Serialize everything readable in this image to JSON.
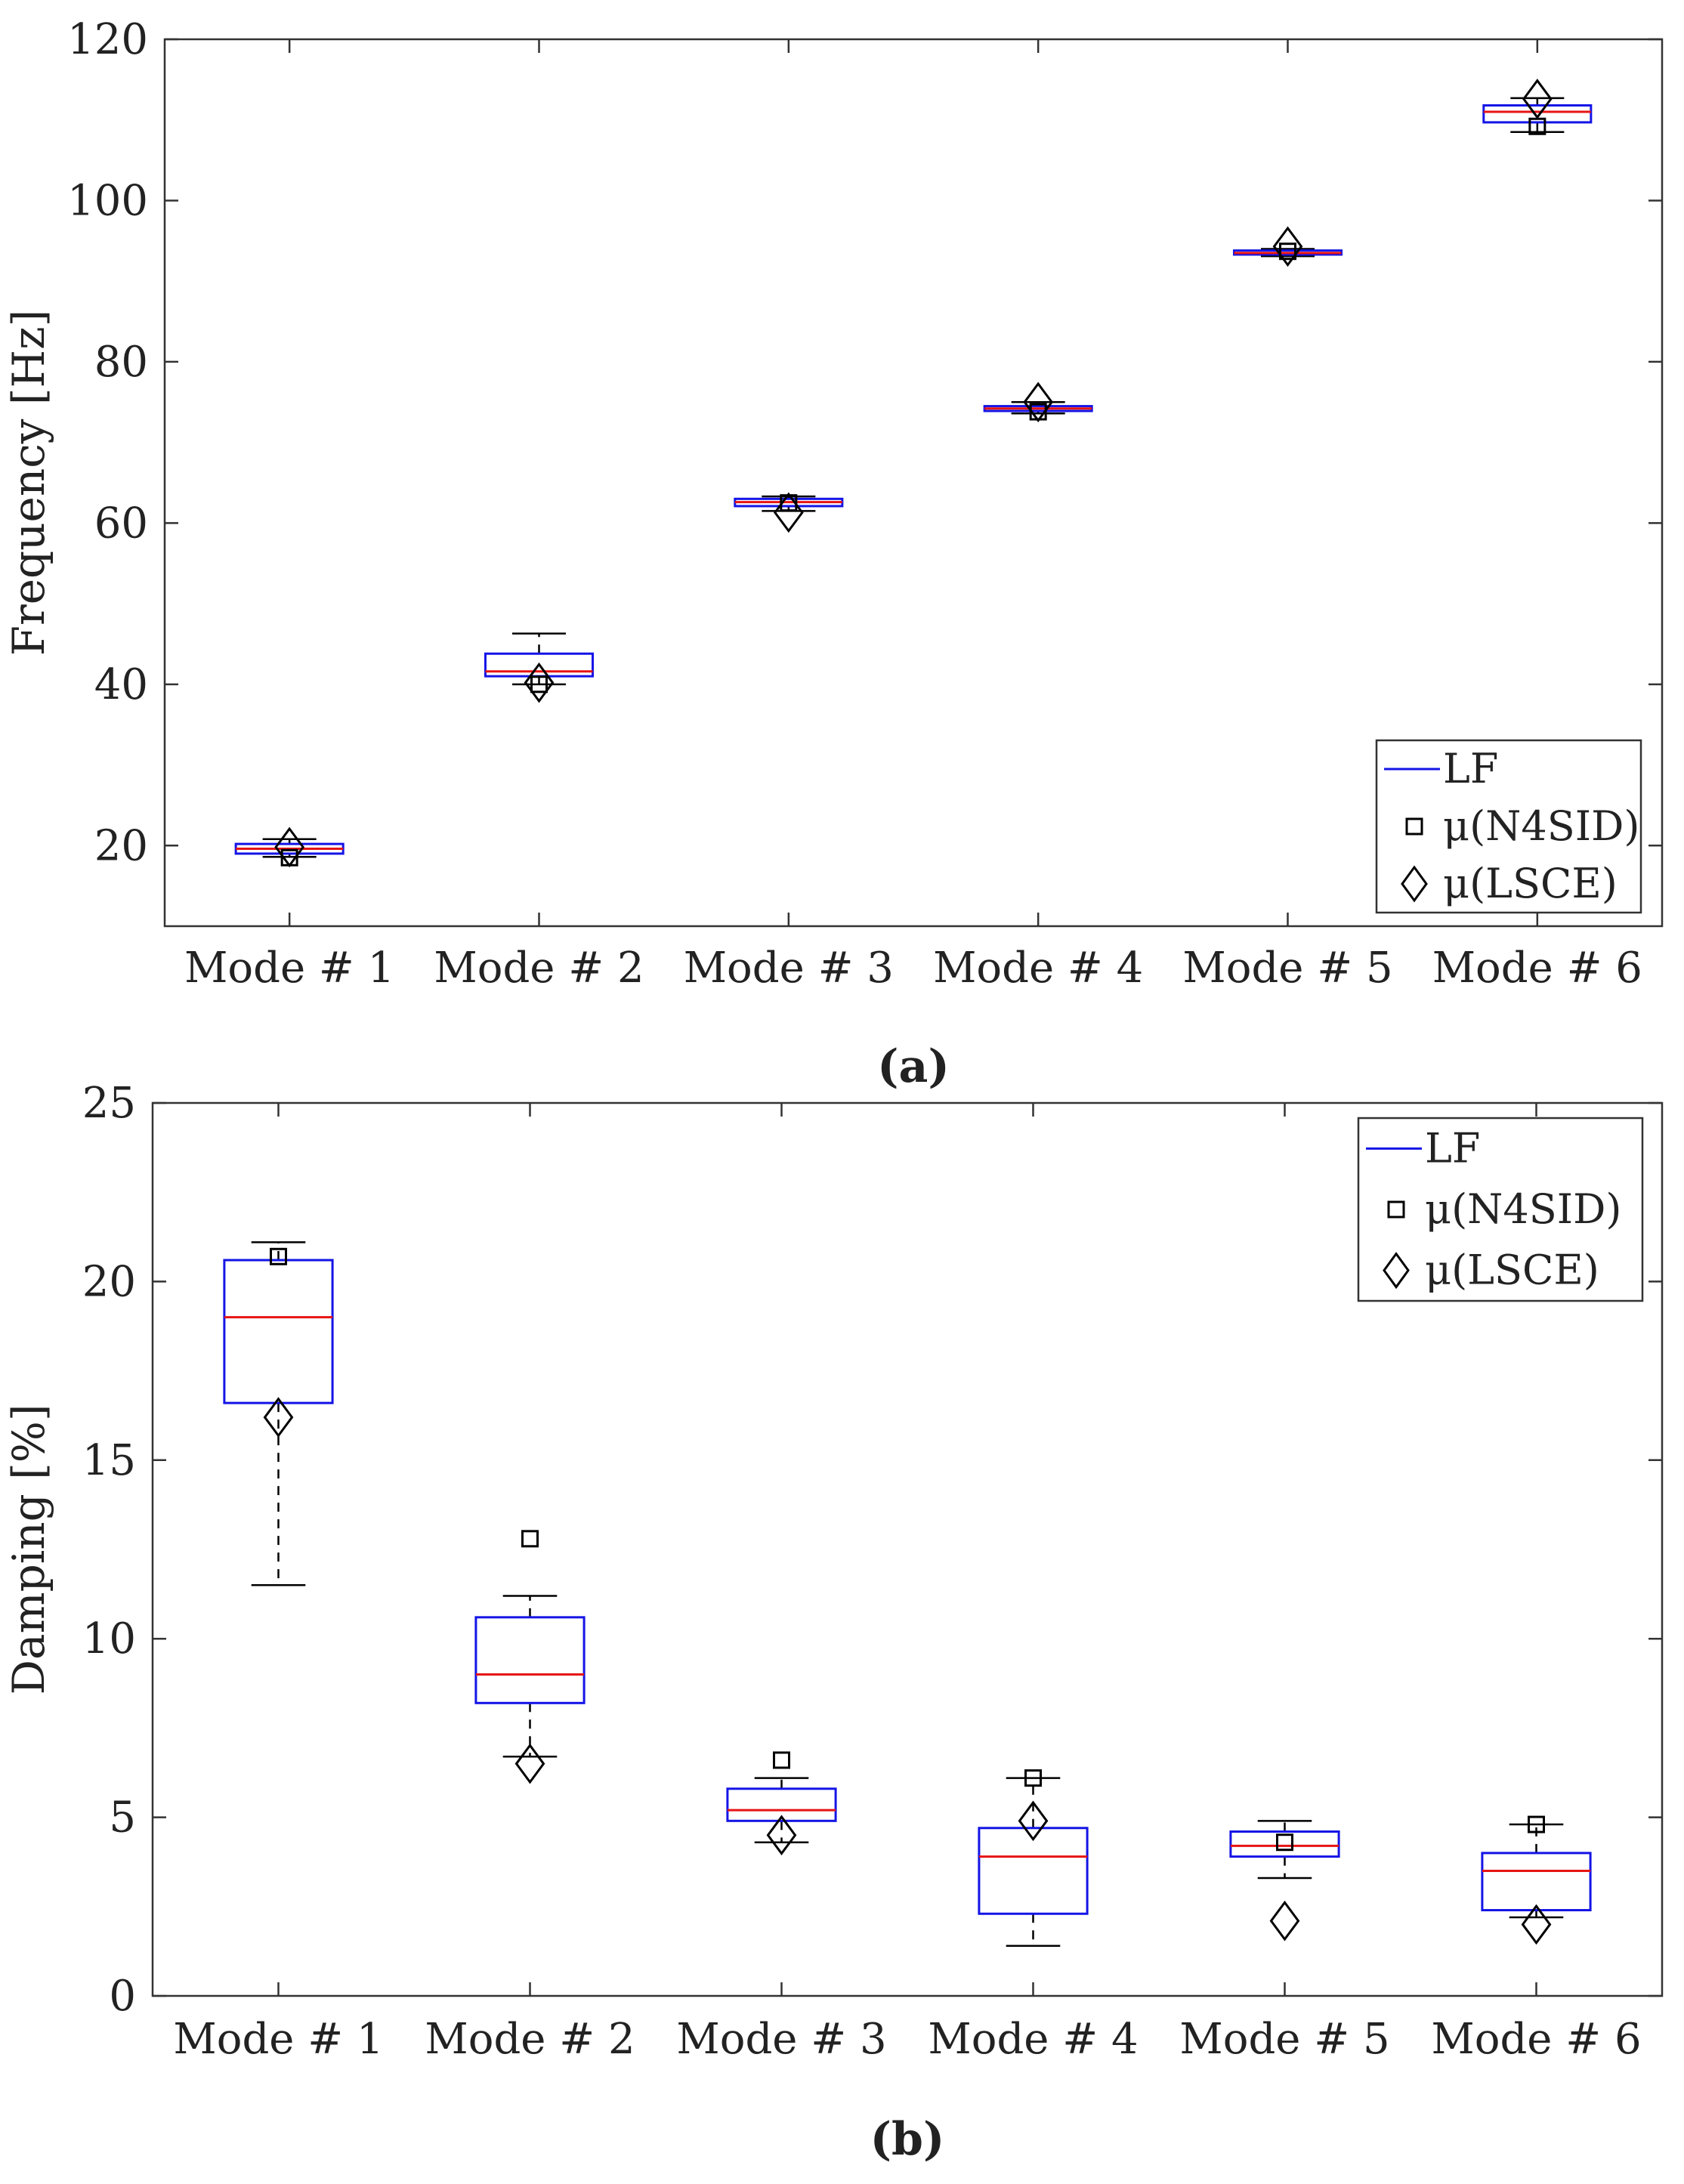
{
  "chart_data": [
    {
      "id": "a",
      "type": "box",
      "panel_label": "(a)",
      "ylabel": "Frequency [Hz]",
      "ylim": [
        10,
        120
      ],
      "yticks": [
        20,
        40,
        60,
        80,
        100,
        120
      ],
      "categories": [
        "Mode # 1",
        "Mode # 2",
        "Mode # 3",
        "Mode # 4",
        "Mode # 5",
        "Mode # 6"
      ],
      "boxes": [
        {
          "whisker_low": 18.6,
          "q1": 19.0,
          "median": 19.6,
          "q3": 20.2,
          "whisker_high": 20.8
        },
        {
          "whisker_low": 40.0,
          "q1": 41.0,
          "median": 41.6,
          "q3": 43.8,
          "whisker_high": 46.3
        },
        {
          "whisker_low": 61.5,
          "q1": 62.1,
          "median": 62.6,
          "q3": 63.0,
          "whisker_high": 63.3
        },
        {
          "whisker_low": 73.6,
          "q1": 73.9,
          "median": 74.2,
          "q3": 74.5,
          "whisker_high": 75.0
        },
        {
          "whisker_low": 93.1,
          "q1": 93.3,
          "median": 93.5,
          "q3": 93.8,
          "whisker_high": 94.0
        },
        {
          "whisker_low": 108.5,
          "q1": 109.7,
          "median": 111.0,
          "q3": 111.8,
          "whisker_high": 112.7
        }
      ],
      "n4sid_mean": [
        18.5,
        40.0,
        62.5,
        73.8,
        93.7,
        109.2
      ],
      "lsce_mean": [
        19.8,
        40.2,
        61.3,
        75.0,
        94.3,
        112.6
      ],
      "legend": {
        "position": "bottom-right",
        "entries": [
          "LF",
          "μ(N4SID)",
          "μ(LSCE)"
        ]
      }
    },
    {
      "id": "b",
      "type": "box",
      "panel_label": "(b)",
      "ylabel": "Damping [%]",
      "ylim": [
        0,
        25
      ],
      "yticks": [
        0,
        5,
        10,
        15,
        20,
        25
      ],
      "categories": [
        "Mode # 1",
        "Mode # 2",
        "Mode # 3",
        "Mode # 4",
        "Mode # 5",
        "Mode # 6"
      ],
      "boxes": [
        {
          "whisker_low": 11.5,
          "q1": 16.6,
          "median": 19.0,
          "q3": 20.6,
          "whisker_high": 21.1
        },
        {
          "whisker_low": 6.7,
          "q1": 8.2,
          "median": 9.0,
          "q3": 10.6,
          "whisker_high": 11.2
        },
        {
          "whisker_low": 4.3,
          "q1": 4.9,
          "median": 5.2,
          "q3": 5.8,
          "whisker_high": 6.1
        },
        {
          "whisker_low": 1.4,
          "q1": 2.3,
          "median": 3.9,
          "q3": 4.7,
          "whisker_high": 6.1
        },
        {
          "whisker_low": 3.3,
          "q1": 3.9,
          "median": 4.2,
          "q3": 4.6,
          "whisker_high": 4.9
        },
        {
          "whisker_low": 2.2,
          "q1": 2.4,
          "median": 3.5,
          "q3": 4.0,
          "whisker_high": 4.8
        }
      ],
      "n4sid_mean": [
        20.7,
        12.8,
        6.6,
        6.1,
        4.3,
        4.8
      ],
      "lsce_mean": [
        16.2,
        6.5,
        4.5,
        4.9,
        2.1,
        2.0
      ],
      "legend": {
        "position": "top-right",
        "entries": [
          "LF",
          "μ(N4SID)",
          "μ(LSCE)"
        ]
      }
    }
  ],
  "colors": {
    "box": "#1414e6",
    "median": "#e61414",
    "marker": "#000000"
  }
}
